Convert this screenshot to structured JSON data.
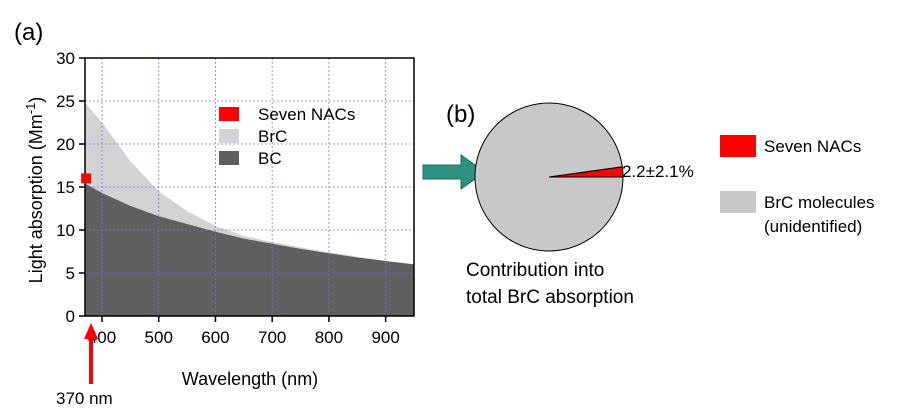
{
  "chart_data": [
    {
      "type": "area",
      "panel_label": "(a)",
      "xlabel": "Wavelength (nm)",
      "ylabel_main": "Light absorption (Mm",
      "ylabel_sup": "-1",
      "ylabel_close": ")",
      "xlim": [
        370,
        950
      ],
      "ylim": [
        0,
        30
      ],
      "xticks": [
        400,
        500,
        600,
        700,
        800,
        900
      ],
      "yticks": [
        0,
        5,
        10,
        15,
        20,
        25,
        30
      ],
      "grid": true,
      "legend_position": "top-right",
      "legend": [
        {
          "name": "Seven NACs",
          "color": "#ff0000",
          "marker": "square"
        },
        {
          "name": "BrC",
          "color": "#d3d3d3"
        },
        {
          "name": "BC",
          "color": "#5f5f5f"
        }
      ],
      "series": [
        {
          "name": "BrC",
          "color": "#d3d3d3",
          "x": [
            370,
            400,
            450,
            500,
            550,
            600,
            650,
            700,
            750,
            800,
            850,
            900,
            950
          ],
          "y": [
            24.8,
            22.5,
            18.0,
            14.5,
            12.2,
            10.5,
            9.3,
            8.6,
            8.0,
            7.4,
            6.9,
            6.4,
            6.0
          ]
        },
        {
          "name": "BC",
          "color": "#5f5f5f",
          "x": [
            370,
            400,
            450,
            500,
            550,
            600,
            650,
            700,
            750,
            800,
            850,
            900,
            950
          ],
          "y": [
            15.4,
            14.3,
            12.8,
            11.6,
            10.7,
            9.8,
            9.0,
            8.4,
            7.8,
            7.3,
            6.8,
            6.4,
            6.0
          ]
        },
        {
          "name": "Seven NACs",
          "type": "scatter",
          "color": "#ff0000",
          "x": [
            372
          ],
          "y": [
            16.0
          ]
        }
      ],
      "annotation": {
        "text": "370 nm",
        "x": 370,
        "color": "#ff0000"
      }
    },
    {
      "type": "pie",
      "panel_label": "(b)",
      "caption_line1": "Contribution into",
      "caption_line2": "total BrC absorption",
      "slice_label": "2.2±2.1%",
      "slices": [
        {
          "name": "Seven NACs",
          "value": 2.2,
          "color": "#ff0000"
        },
        {
          "name": "BrC molecules (unidentified)",
          "value": 97.8,
          "color": "#c8c8c8"
        }
      ],
      "legend": [
        {
          "name": "Seven NACs",
          "lines": [
            "Seven NACs"
          ],
          "color": "#ff0000"
        },
        {
          "name": "BrC molecules (unidentified)",
          "lines": [
            "BrC molecules",
            "(unidentified)"
          ],
          "color": "#c8c8c8"
        }
      ],
      "arrow_color": "#2e9283"
    }
  ]
}
